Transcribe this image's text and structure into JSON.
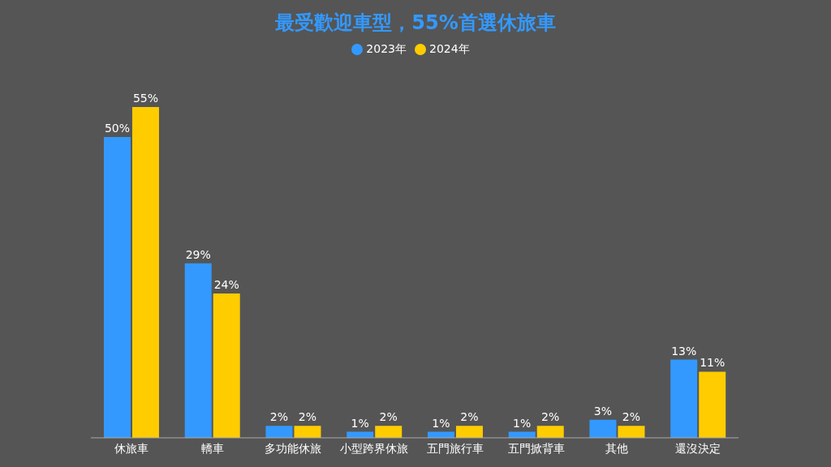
{
  "chart_data": {
    "type": "bar",
    "title": "最受歡迎車型，55%首選休旅車",
    "categories": [
      "休旅車",
      "轎車",
      "多功能休旅",
      "小型跨界休旅",
      "五門旅行車",
      "五門掀背車",
      "其他",
      "還沒決定"
    ],
    "series": [
      {
        "name": "2023年",
        "color": "#3399ff",
        "values": [
          50,
          29,
          2,
          1,
          1,
          1,
          3,
          13
        ],
        "value_labels": [
          "50%",
          "29%",
          "2%",
          "1%",
          "1%",
          "1%",
          "3%",
          "13%"
        ]
      },
      {
        "name": "2024年",
        "color": "#ffcc00",
        "values": [
          55,
          24,
          2,
          2,
          2,
          2,
          2,
          11
        ],
        "value_labels": [
          "55%",
          "24%",
          "2%",
          "2%",
          "2%",
          "2%",
          "2%",
          "11%"
        ]
      }
    ],
    "legend": "top",
    "grid": false,
    "tick_labels": "x"
  }
}
